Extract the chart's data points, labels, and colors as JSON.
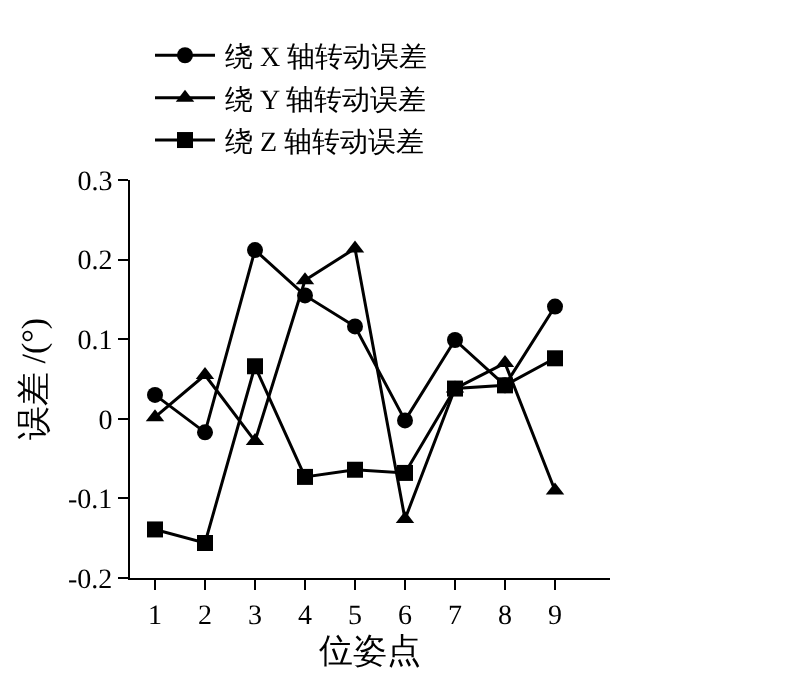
{
  "chart_data": {
    "type": "line",
    "xlabel": "位姿点",
    "ylabel": "误差 /(°)",
    "x": [
      1,
      2,
      3,
      4,
      5,
      6,
      7,
      8,
      9
    ],
    "series": [
      {
        "name": "绕 X 轴转动误差",
        "color": "#000000",
        "marker": "circle",
        "values": [
          0.03,
          -0.017,
          0.212,
          0.155,
          0.116,
          -0.002,
          0.099,
          0.042,
          0.141
        ]
      },
      {
        "name": "绕 Y 轴转动误差",
        "color": "#000000",
        "marker": "triangle",
        "values": [
          0.002,
          0.055,
          -0.028,
          0.174,
          0.214,
          -0.126,
          0.038,
          0.07,
          -0.09
        ]
      },
      {
        "name": "绕 Z 轴转动误差",
        "color": "#000000",
        "marker": "square",
        "values": [
          -0.139,
          -0.156,
          0.066,
          -0.073,
          -0.064,
          -0.068,
          0.038,
          0.042,
          0.076
        ]
      }
    ],
    "xlim": [
      0.5,
      10.1
    ],
    "xticks": [
      1,
      2,
      3,
      4,
      5,
      6,
      7,
      8,
      9
    ],
    "ylim": [
      -0.2,
      0.3
    ],
    "yticks": [
      -0.2,
      -0.1,
      0,
      0.1,
      0.2,
      0.3
    ],
    "grid": false,
    "legend": "top",
    "line_style": "solid"
  }
}
